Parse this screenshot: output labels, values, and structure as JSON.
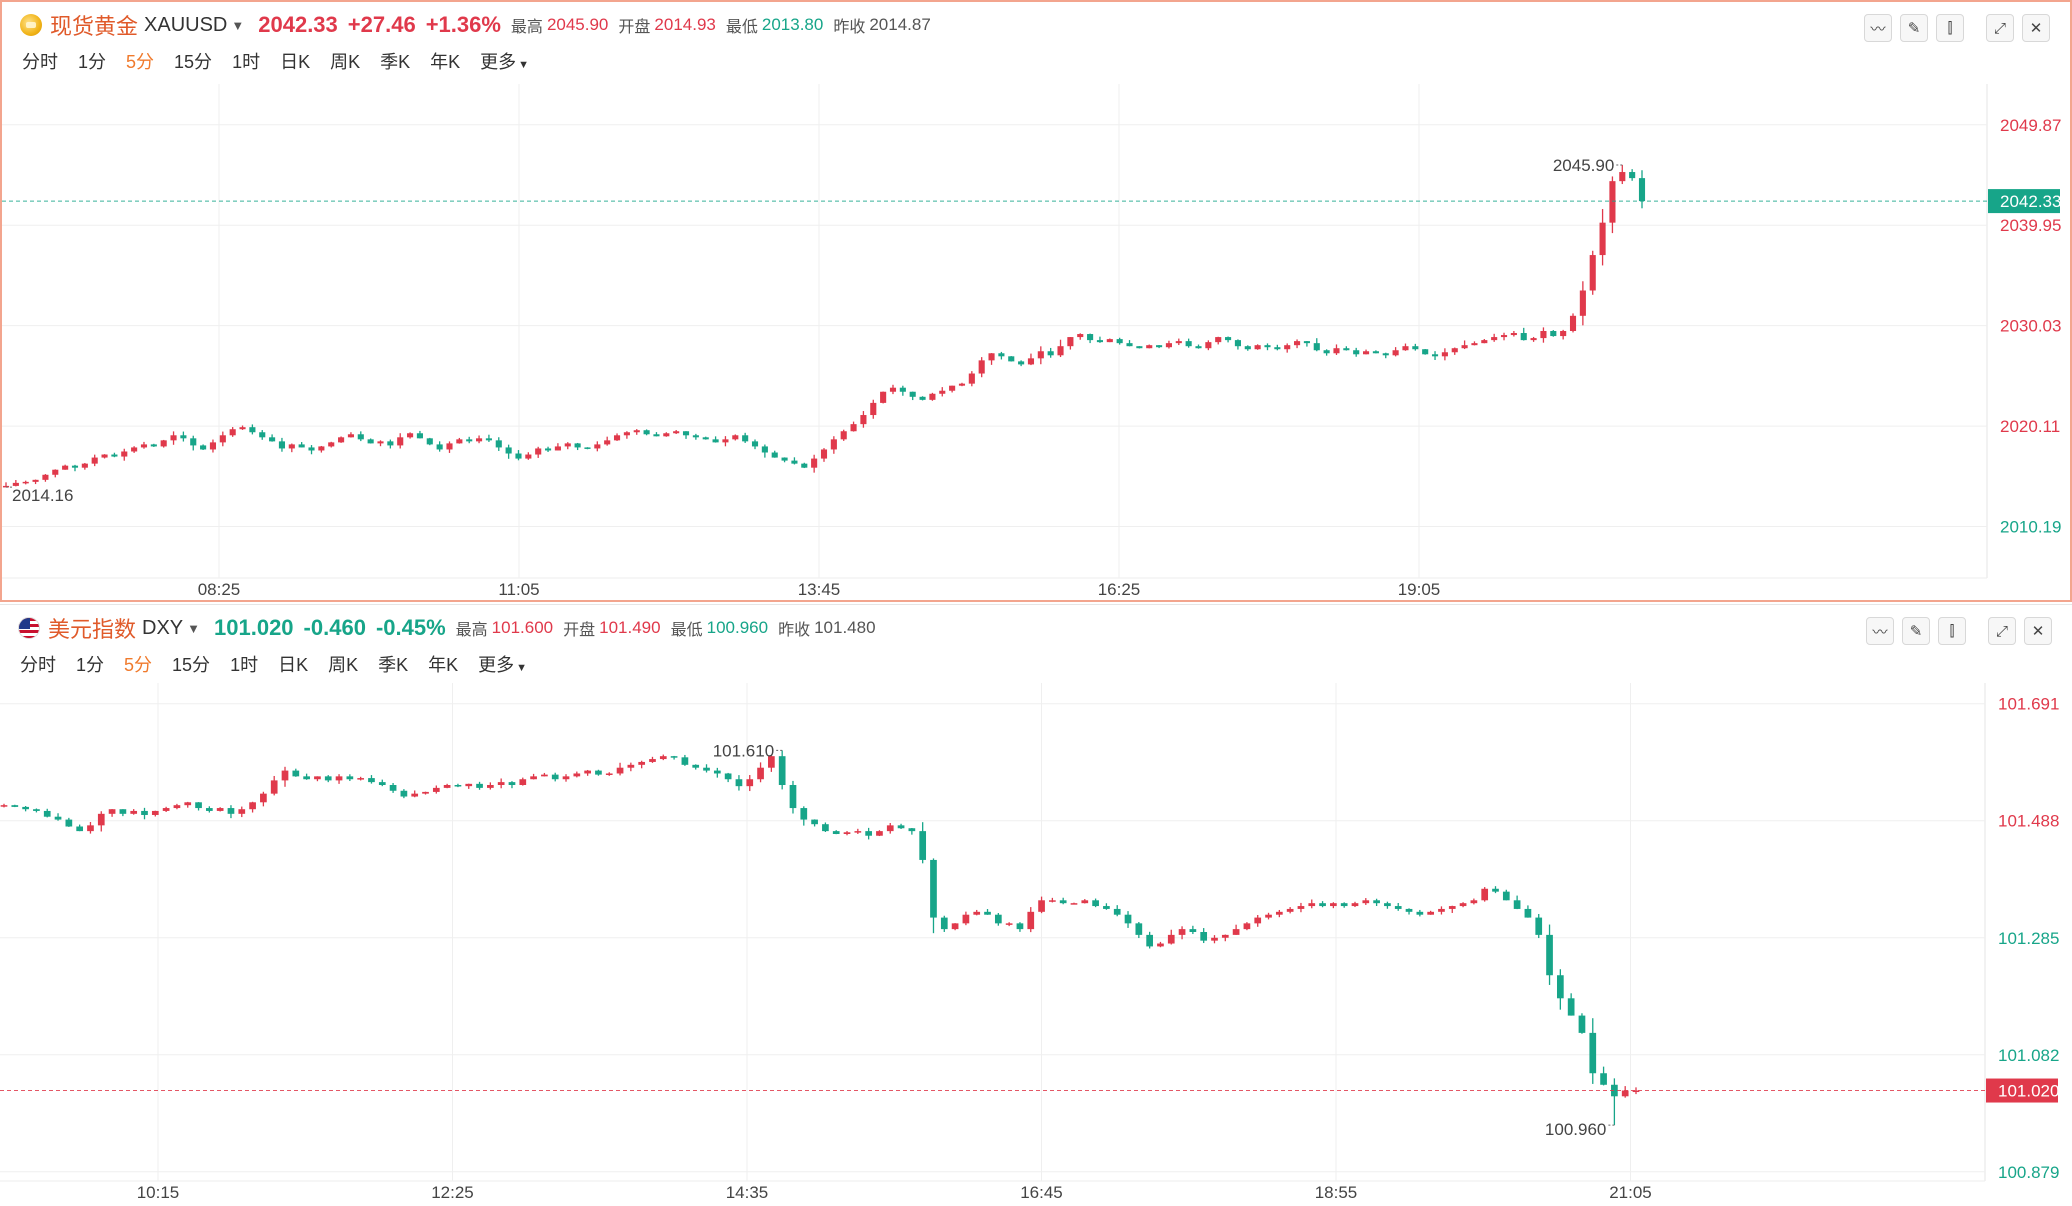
{
  "colors": {
    "up": "#e0394b",
    "down": "#17a589",
    "accent": "#f07a2c",
    "grid": "#efefef",
    "border_active": "#f3a58e"
  },
  "panels": [
    {
      "name": "现货黄金",
      "code": "XAUUSD",
      "price": "2042.33",
      "change": "+27.46",
      "change_pct": "+1.36%",
      "direction": "up",
      "stats": [
        {
          "label": "最高",
          "value": "2045.90",
          "tone": "up"
        },
        {
          "label": "开盘",
          "value": "2014.93",
          "tone": "up"
        },
        {
          "label": "最低",
          "value": "2013.80",
          "tone": "dn"
        },
        {
          "label": "昨收",
          "value": "2014.87",
          "tone": "gray"
        }
      ],
      "tabs": [
        "分时",
        "1分",
        "5分",
        "15分",
        "1时",
        "日K",
        "周K",
        "季K",
        "年K",
        "更多"
      ],
      "active_tab": "5分",
      "tool_icons": [
        "indicator-icon",
        "draw-pen-icon",
        "candle-style-icon",
        "expand-icon",
        "close-icon"
      ],
      "y_labels": [
        "2049.87",
        "2039.95",
        "2030.03",
        "2020.11",
        "2010.19"
      ],
      "y_label_tones": [
        "up",
        "up",
        "up",
        "up",
        "dn"
      ],
      "x_labels": [
        "08:25",
        "11:05",
        "13:45",
        "16:25",
        "19:05"
      ],
      "current_price_tag": "2042.33",
      "current_tag_tone": "dn",
      "high_marker": "2045.90",
      "low_marker": "2014.16"
    },
    {
      "name": "美元指数",
      "code": "DXY",
      "price": "101.020",
      "change": "-0.460",
      "change_pct": "-0.45%",
      "direction": "dn",
      "stats": [
        {
          "label": "最高",
          "value": "101.600",
          "tone": "up"
        },
        {
          "label": "开盘",
          "value": "101.490",
          "tone": "up"
        },
        {
          "label": "最低",
          "value": "100.960",
          "tone": "dn"
        },
        {
          "label": "昨收",
          "value": "101.480",
          "tone": "gray"
        }
      ],
      "tabs": [
        "分时",
        "1分",
        "5分",
        "15分",
        "1时",
        "日K",
        "周K",
        "季K",
        "年K",
        "更多"
      ],
      "active_tab": "5分",
      "tool_icons": [
        "indicator-icon",
        "draw-pen-icon",
        "candle-style-icon",
        "expand-icon",
        "close-icon"
      ],
      "y_labels": [
        "101.691",
        "101.488",
        "101.285",
        "101.082",
        "100.879"
      ],
      "y_label_tones": [
        "up",
        "up",
        "dn",
        "dn",
        "dn"
      ],
      "x_labels": [
        "10:15",
        "12:25",
        "14:35",
        "16:45",
        "18:55",
        "21:05"
      ],
      "current_price_tag": "101.020",
      "current_tag_tone": "up",
      "high_marker": "101.610",
      "low_marker": "100.960"
    }
  ],
  "chart_data": [
    {
      "type": "candlestick",
      "series_name": "XAUUSD",
      "y_range": [
        2005.5,
        2053.5
      ],
      "y_ticks": [
        2049.87,
        2039.95,
        2030.03,
        2020.11,
        2010.19
      ],
      "last": 2042.33,
      "high": 2045.9,
      "low": 2014.16,
      "closes": [
        2014.2,
        2014.5,
        2014.6,
        2014.8,
        2015.3,
        2015.8,
        2016.2,
        2016.0,
        2016.4,
        2017.0,
        2017.3,
        2017.1,
        2017.6,
        2018.0,
        2018.3,
        2018.1,
        2018.7,
        2019.2,
        2018.9,
        2018.2,
        2017.8,
        2018.5,
        2019.2,
        2019.8,
        2020.0,
        2019.5,
        2019.0,
        2018.6,
        2017.9,
        2018.3,
        2018.0,
        2017.7,
        2018.1,
        2018.5,
        2019.0,
        2019.3,
        2018.8,
        2018.4,
        2018.6,
        2018.2,
        2019.0,
        2019.4,
        2018.9,
        2018.3,
        2017.8,
        2018.4,
        2018.8,
        2018.6,
        2018.9,
        2018.7,
        2018.0,
        2017.4,
        2016.9,
        2017.3,
        2017.9,
        2017.7,
        2018.1,
        2018.4,
        2018.0,
        2017.9,
        2018.3,
        2018.7,
        2019.2,
        2019.5,
        2019.7,
        2019.3,
        2019.1,
        2019.4,
        2019.6,
        2019.2,
        2019.0,
        2018.8,
        2018.5,
        2018.8,
        2019.2,
        2018.6,
        2018.1,
        2017.5,
        2017.0,
        2016.7,
        2016.4,
        2016.0,
        2016.9,
        2017.8,
        2018.8,
        2019.6,
        2020.3,
        2021.2,
        2022.4,
        2023.5,
        2023.9,
        2023.5,
        2023.0,
        2022.7,
        2023.3,
        2023.6,
        2024.1,
        2024.3,
        2025.3,
        2026.6,
        2027.3,
        2027.0,
        2026.5,
        2026.2,
        2026.8,
        2027.5,
        2027.1,
        2028.0,
        2028.9,
        2029.2,
        2028.6,
        2028.4,
        2028.7,
        2028.3,
        2028.0,
        2027.8,
        2028.1,
        2027.9,
        2028.3,
        2028.5,
        2028.0,
        2027.8,
        2028.4,
        2028.9,
        2028.6,
        2028.0,
        2027.7,
        2028.1,
        2027.9,
        2027.7,
        2028.1,
        2028.5,
        2028.3,
        2027.6,
        2027.3,
        2027.8,
        2027.6,
        2027.2,
        2027.5,
        2027.3,
        2027.1,
        2027.6,
        2028.0,
        2027.7,
        2027.2,
        2027.0,
        2027.4,
        2027.8,
        2028.1,
        2028.3,
        2028.6,
        2028.9,
        2029.1,
        2029.3,
        2028.6,
        2028.8,
        2029.5,
        2029.0,
        2029.5,
        2031.0,
        2033.5,
        2037.0,
        2040.2,
        2044.3,
        2045.2,
        2044.6,
        2042.33
      ],
      "x_ticks": [
        "08:25",
        "11:05",
        "13:45",
        "16:25",
        "19:05"
      ]
    },
    {
      "type": "candlestick",
      "series_name": "DXY",
      "y_range": [
        100.87,
        101.72
      ],
      "y_ticks": [
        101.691,
        101.488,
        101.285,
        101.082,
        100.879
      ],
      "last": 101.02,
      "high": 101.61,
      "low": 100.96,
      "closes": [
        101.515,
        101.512,
        101.508,
        101.505,
        101.495,
        101.49,
        101.478,
        101.47,
        101.48,
        101.5,
        101.508,
        101.5,
        101.505,
        101.498,
        101.505,
        101.51,
        101.515,
        101.52,
        101.51,
        101.505,
        101.51,
        101.5,
        101.508,
        101.52,
        101.535,
        101.558,
        101.575,
        101.565,
        101.56,
        101.565,
        101.558,
        101.565,
        101.56,
        101.562,
        101.555,
        101.55,
        101.54,
        101.53,
        101.535,
        101.538,
        101.545,
        101.55,
        101.548,
        101.552,
        101.545,
        101.55,
        101.555,
        101.55,
        101.56,
        101.565,
        101.568,
        101.56,
        101.565,
        101.57,
        101.575,
        101.568,
        101.57,
        101.58,
        101.585,
        101.59,
        101.595,
        101.6,
        101.598,
        101.585,
        101.58,
        101.575,
        101.57,
        101.56,
        101.548,
        101.56,
        101.58,
        101.6,
        101.55,
        101.51,
        101.49,
        101.482,
        101.47,
        101.465,
        101.468,
        101.47,
        101.462,
        101.47,
        101.48,
        101.475,
        101.47,
        101.42,
        101.32,
        101.3,
        101.31,
        101.325,
        101.33,
        101.325,
        101.31,
        101.31,
        101.3,
        101.33,
        101.35,
        101.35,
        101.345,
        101.345,
        101.35,
        101.34,
        101.335,
        101.325,
        101.31,
        101.29,
        101.27,
        101.275,
        101.29,
        101.3,
        101.295,
        101.28,
        101.285,
        101.29,
        101.3,
        101.31,
        101.32,
        101.325,
        101.33,
        101.335,
        101.34,
        101.345,
        101.34,
        101.345,
        101.34,
        101.345,
        101.35,
        101.345,
        101.34,
        101.335,
        101.33,
        101.325,
        101.33,
        101.335,
        101.34,
        101.345,
        101.35,
        101.37,
        101.365,
        101.35,
        101.335,
        101.32,
        101.29,
        101.22,
        101.18,
        101.15,
        101.12,
        101.05,
        101.03,
        101.01,
        101.02,
        101.02
      ],
      "x_ticks": [
        "10:15",
        "12:25",
        "14:35",
        "16:45",
        "18:55",
        "21:05"
      ]
    }
  ]
}
